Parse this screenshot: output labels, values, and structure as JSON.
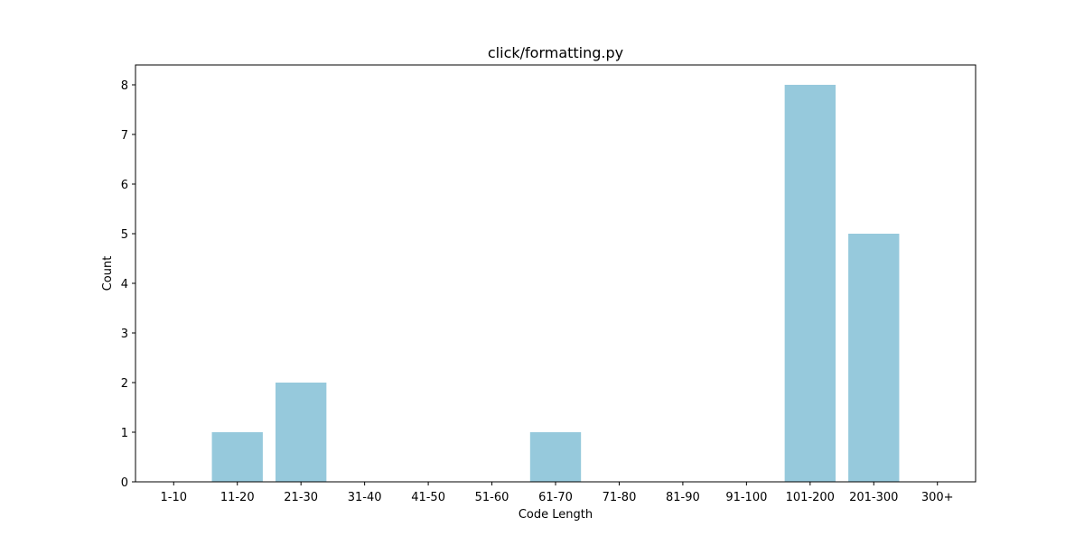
{
  "chart_data": {
    "type": "bar",
    "title": "click/formatting.py",
    "xlabel": "Code Length",
    "ylabel": "Count",
    "categories": [
      "1-10",
      "11-20",
      "21-30",
      "31-40",
      "41-50",
      "51-60",
      "61-70",
      "71-80",
      "81-90",
      "91-100",
      "101-200",
      "201-300",
      "300+"
    ],
    "values": [
      0,
      1,
      2,
      0,
      0,
      0,
      1,
      0,
      0,
      0,
      8,
      5,
      0
    ],
    "yticks": [
      0,
      1,
      2,
      3,
      4,
      5,
      6,
      7,
      8
    ],
    "ylim": [
      0,
      8.4
    ],
    "grid": false,
    "bar_color": "#96c9dc"
  }
}
